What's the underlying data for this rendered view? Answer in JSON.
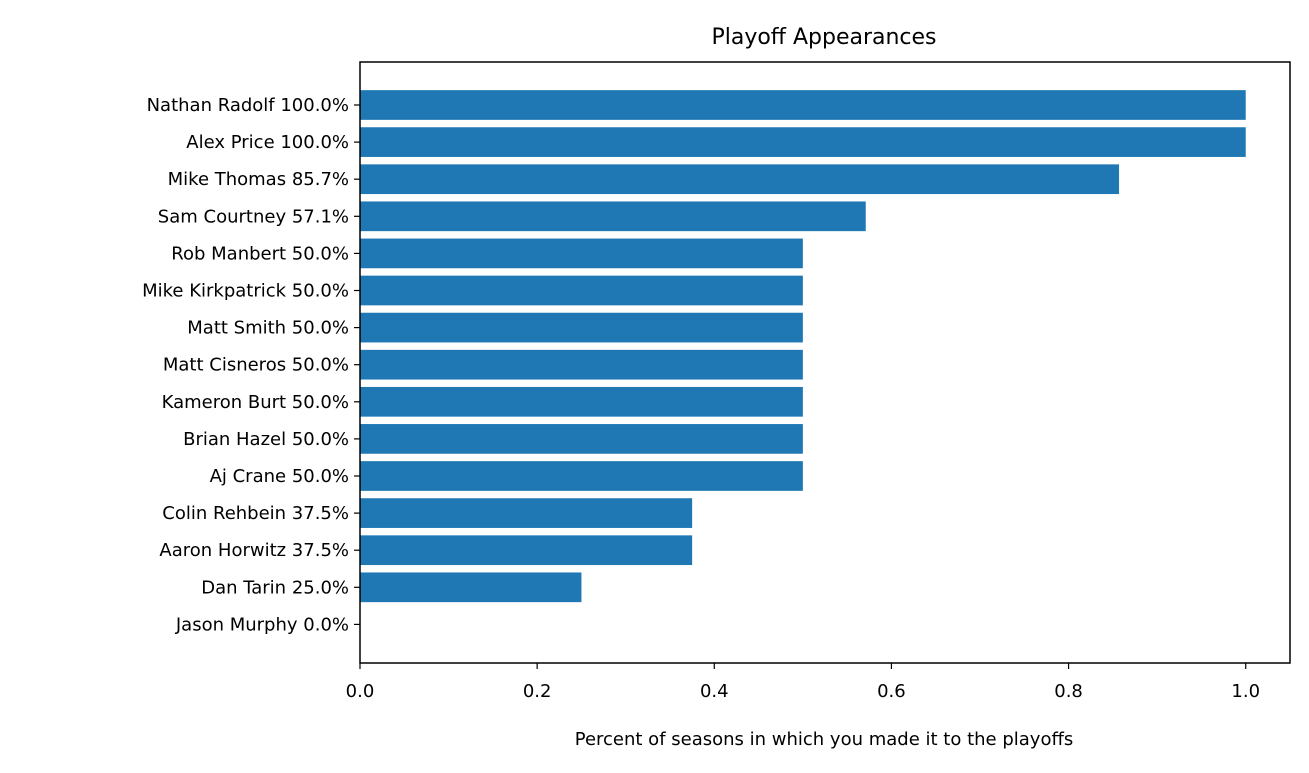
{
  "chart_data": {
    "type": "bar",
    "orientation": "horizontal",
    "title": "Playoff Appearances",
    "xlabel": "Percent of seasons in which you made it to the playoffs",
    "ylabel": "",
    "xlim": [
      0,
      1.05
    ],
    "xticks": [
      "0.0",
      "0.2",
      "0.4",
      "0.6",
      "0.8",
      "1.0"
    ],
    "grid": false,
    "bar_color": "#1f77b4",
    "categories": [
      "Nathan Radolf 100.0%",
      "Alex Price 100.0%",
      "Mike Thomas 85.7%",
      "Sam Courtney 57.1%",
      "Rob Manbert 50.0%",
      "Mike Kirkpatrick 50.0%",
      "Matt Smith 50.0%",
      "Matt Cisneros 50.0%",
      "Kameron Burt 50.0%",
      "Brian Hazel 50.0%",
      "Aj Crane 50.0%",
      "Colin Rehbein 37.5%",
      "Aaron Horwitz 37.5%",
      "Dan Tarin 25.0%",
      "Jason Murphy 0.0%"
    ],
    "values": [
      1.0,
      1.0,
      0.857,
      0.571,
      0.5,
      0.5,
      0.5,
      0.5,
      0.5,
      0.5,
      0.5,
      0.375,
      0.375,
      0.25,
      0.0
    ]
  }
}
